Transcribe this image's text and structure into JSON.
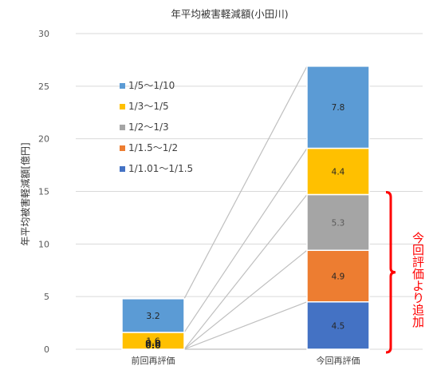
{
  "chart_data": {
    "type": "bar",
    "stacked": true,
    "title": "年平均被害軽減額(小田川)",
    "ylabel": "年平均被害軽減額[億円]",
    "xlabel": "",
    "ylim": [
      0,
      30
    ],
    "yticks": [
      0,
      5,
      10,
      15,
      20,
      25,
      30
    ],
    "grid": true,
    "legend_position": "left",
    "categories": [
      "前回再評価",
      "今回再評価"
    ],
    "series": [
      {
        "name": "1/1.01〜1/1.5",
        "color": "#4472C4",
        "values": [
          0.0,
          4.5
        ],
        "labels": [
          "0.0",
          "4.5"
        ]
      },
      {
        "name": "1/1.5〜1/2",
        "color": "#ED7D31",
        "values": [
          0.0,
          4.9
        ],
        "labels": [
          "0.0",
          "4.9"
        ]
      },
      {
        "name": "1/2〜1/3",
        "color": "#A5A5A5",
        "values": [
          0.0,
          5.3
        ],
        "labels": [
          "",
          "5.3"
        ]
      },
      {
        "name": "1/3〜1/5",
        "color": "#FFC000",
        "values": [
          1.6,
          4.4
        ],
        "labels": [
          "1.6",
          "4.4"
        ]
      },
      {
        "name": "1/5〜1/10",
        "color": "#5B9BD5",
        "values": [
          3.2,
          7.8
        ],
        "labels": [
          "3.2",
          "7.8"
        ]
      }
    ],
    "legend_order": [
      4,
      3,
      2,
      1,
      0
    ],
    "annotation": {
      "text": "今回評価より追加",
      "color": "#FF0000",
      "covers_series": [
        0,
        1,
        2
      ]
    }
  }
}
